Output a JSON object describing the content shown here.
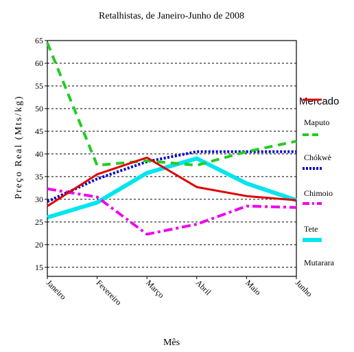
{
  "chart_data": {
    "type": "line",
    "title": "Retalhistas, de Janeiro-Junho de 2008",
    "xlabel": "Mês",
    "ylabel": "Preço Real (Mts/kg)",
    "categories": [
      "Janeiro",
      "Fevereiro",
      "Março",
      "Abril",
      "Maio",
      "Junho"
    ],
    "ylim": [
      13,
      65
    ],
    "yticks": [
      15,
      20,
      25,
      30,
      35,
      40,
      45,
      50,
      55,
      60,
      65
    ],
    "grid": "horizontal dashed",
    "legend": {
      "title": "Mercado",
      "placement": "right"
    },
    "series": [
      {
        "name": "Maputo",
        "color": "#e00000",
        "dash": "solid",
        "values": [
          28.5,
          35.5,
          39.2,
          32.7,
          30.7,
          29.8
        ]
      },
      {
        "name": "Chókwè",
        "color": "#22cc22",
        "dash": "dash",
        "values": [
          64.5,
          37.5,
          38.5,
          37.5,
          40.5,
          42.8
        ]
      },
      {
        "name": "Chimoio",
        "color": "#0000cc",
        "dash": "dot",
        "values": [
          29.5,
          34.5,
          38.3,
          40.5,
          40.5,
          40.5
        ]
      },
      {
        "name": "Tete",
        "color": "#ee00ee",
        "dash": "dashdot",
        "values": [
          32.3,
          30.5,
          22.3,
          24.5,
          28.5,
          28.2
        ]
      },
      {
        "name": "Mutarara",
        "color": "#00e5ee",
        "dash": "solid-thick",
        "values": [
          26.0,
          29.3,
          35.8,
          39.0,
          33.5,
          29.8
        ]
      }
    ]
  }
}
